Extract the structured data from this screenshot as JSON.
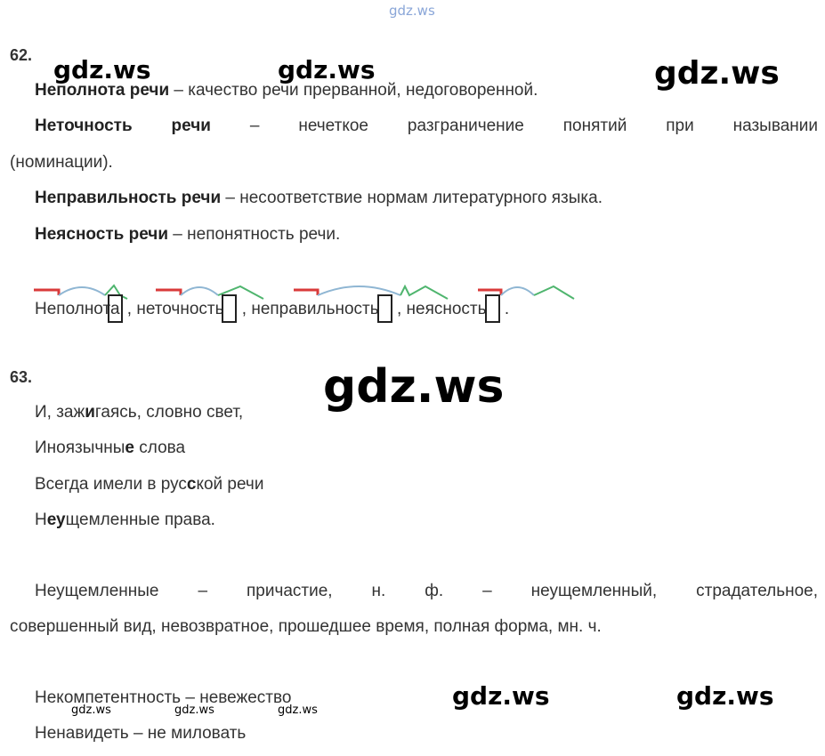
{
  "watermark": "gdz.ws",
  "task62": {
    "number": "62.",
    "defs": [
      {
        "term": "Неполнота речи",
        "dash": " – ",
        "text": "качество речи прерванной, недоговоренной."
      },
      {
        "term": "Неточность речи",
        "dash": " – ",
        "text": "нечеткое разграничение понятий при назывании",
        "cont": "(номинации)."
      },
      {
        "term": "Неправильность речи",
        "dash": " – ",
        "text": "несоответствие нормам литературного языка."
      },
      {
        "term": "Неясность речи",
        "dash": " – ",
        "text": "непонятность речи."
      }
    ],
    "words": [
      "Неполнота",
      ", неточность",
      ", неправильность",
      ", неясность",
      "."
    ]
  },
  "task63": {
    "number": "63.",
    "poem": [
      [
        "И, заж",
        "и",
        "гаясь, словно свет,"
      ],
      [
        "Иноязычны",
        "е",
        " слова"
      ],
      [
        "Всегда имели в рус",
        "с",
        "кой речи"
      ],
      [
        "Н",
        "еу",
        "щемленные права."
      ]
    ],
    "analysis": {
      "word": "Неущемленные",
      "dash": "–",
      "pos": "причастие,",
      "rest": "н. ф. – неущемленный, страдательное,",
      "line2": "совершенный вид, невозвратное, прошедшее время, полная форма, мн. ч."
    },
    "pairs": [
      "Некомпетентность – невежество",
      "Ненавидеть – не миловать"
    ]
  },
  "colors": {
    "red": "#d93a3a",
    "blue": "#8fb6d3",
    "green": "#4fb56e"
  }
}
